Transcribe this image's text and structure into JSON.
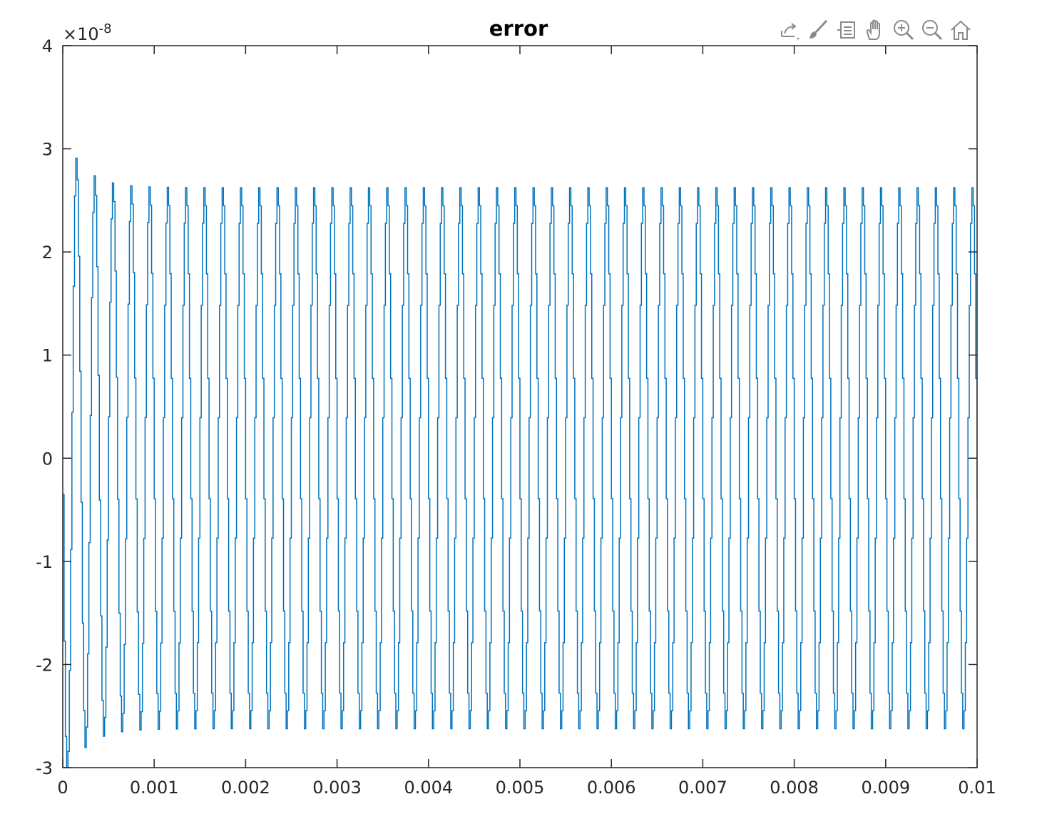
{
  "toolbar": {
    "icons": [
      "export-icon",
      "brush-icon",
      "legend-icon",
      "pan-icon",
      "zoom-in-icon",
      "zoom-out-icon",
      "home-icon"
    ]
  },
  "colors": {
    "line": "#0072BD",
    "axes": "#262626",
    "tick_text": "#262626"
  },
  "chart_data": {
    "type": "line",
    "title": "error",
    "xlabel": "",
    "ylabel": "",
    "y_exponent_label": "×10",
    "y_exponent_power": "-8",
    "xlim": [
      0,
      0.01
    ],
    "ylim": [
      -3,
      4
    ],
    "x_ticks": [
      0,
      0.001,
      0.002,
      0.003,
      0.004,
      0.005,
      0.006,
      0.007,
      0.008,
      0.009,
      0.01
    ],
    "x_tick_labels": [
      "0",
      "0.001",
      "0.002",
      "0.003",
      "0.004",
      "0.005",
      "0.006",
      "0.007",
      "0.008",
      "0.009",
      "0.01"
    ],
    "y_ticks": [
      -3,
      -2,
      -1,
      0,
      1,
      2,
      3,
      4
    ],
    "y_tick_labels": [
      "-3",
      "-2",
      "-1",
      "0",
      "1",
      "2",
      "3",
      "4"
    ],
    "grid": false,
    "series": [
      {
        "color": "#0072BD",
        "description": "oscillating error signal (units of 1e-8), ~5 kHz, initial transient then steady amplitude",
        "frequency_hz": 5000,
        "samples_per_period": 14,
        "sample_period": 1.42857e-05,
        "steady_amplitude": 2.63,
        "initial_peaks": [
          {
            "x": 7e-05,
            "y": -2.7
          },
          {
            "x": 0.00017,
            "y": 3.05
          },
          {
            "x": 0.00027,
            "y": -2.3
          },
          {
            "x": 0.00037,
            "y": 2.8
          },
          {
            "x": 0.00047,
            "y": -2.52
          },
          {
            "x": 0.00057,
            "y": 2.68
          },
          {
            "x": 0.00067,
            "y": -2.6
          }
        ]
      }
    ]
  }
}
